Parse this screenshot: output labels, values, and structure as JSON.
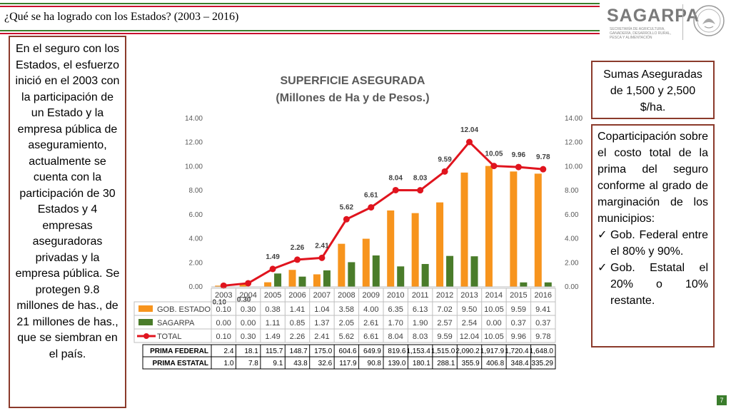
{
  "header": {
    "title": "¿Qué se ha logrado con los Estados? (2003 – 2016)"
  },
  "logo": {
    "name": "SAGARPA",
    "subtitle": "SECRETARÍA DE AGRICULTURA, GANADERÍA, DESARROLLO RURAL, PESCA Y ALIMENTACIÓN"
  },
  "left_text": "En el seguro con los Estados, el esfuerzo inició en el 2003 con la participación de un Estado y la empresa pública de aseguramiento, actualmente se cuenta con la participación de 30 Estados y 4 empresas aseguradoras privadas y la empresa pública. Se protegen 9.8 millones de has., de 21 millones de has., que se siembran en el país.",
  "sumas_text": "Sumas Aseguradas de 1,500 y 2,500 $/ha.",
  "copart": {
    "intro": "Coparticipación sobre el costo total de la prima del seguro conforme al grado de marginación de los municipios:",
    "items": [
      "Gob. Federal entre el 80% y 90%.",
      "Gob. Estatal el 20% o 10% restante."
    ]
  },
  "page_number": "7",
  "colors": {
    "gobestado": "#f7941d",
    "sagarpa": "#4a7c2a",
    "total": "#e0141e",
    "border": "#8b3a2b",
    "green_line": "#3a7d2c",
    "red_line": "#c8102e"
  },
  "chart_data": {
    "type": "bar",
    "title": "SUPERFICIE ASEGURADA",
    "subtitle": "(Millones de Ha y de Pesos.)",
    "ylim": [
      0,
      14
    ],
    "yticks": [
      "0.00",
      "2.00",
      "4.00",
      "6.00",
      "8.00",
      "10.00",
      "12.00",
      "14.00"
    ],
    "grid": false,
    "categories": [
      "2003",
      "2004",
      "2005",
      "2006",
      "2007",
      "2008",
      "2009",
      "2010",
      "2011",
      "2012",
      "2013",
      "2014",
      "2015",
      "2016"
    ],
    "series": [
      {
        "name": "GOB. ESTADO",
        "kind": "bar",
        "values": [
          0.1,
          0.3,
          0.38,
          1.41,
          1.04,
          3.58,
          4.0,
          6.35,
          6.13,
          7.02,
          9.5,
          10.05,
          9.59,
          9.41
        ],
        "labels": [
          "0.10",
          "0.30",
          "0.38",
          "1.41",
          "1.04",
          "3.58",
          "4.00",
          "6.35",
          "6.13",
          "7.02",
          "9.50",
          "10.05",
          "9.59",
          "9.41"
        ]
      },
      {
        "name": "SAGARPA",
        "kind": "bar",
        "values": [
          0.0,
          0.0,
          1.11,
          0.85,
          1.37,
          2.05,
          2.61,
          1.7,
          1.9,
          2.57,
          2.54,
          0.0,
          0.37,
          0.37
        ],
        "labels": [
          "0.00",
          "0.00",
          "1.11",
          "0.85",
          "1.37",
          "2.05",
          "2.61",
          "1.70",
          "1.90",
          "2.57",
          "2.54",
          "0.00",
          "0.37",
          "0.37"
        ]
      },
      {
        "name": "TOTAL",
        "kind": "line",
        "values": [
          0.1,
          0.3,
          1.49,
          2.26,
          2.41,
          5.62,
          6.61,
          8.04,
          8.03,
          9.59,
          12.04,
          10.05,
          9.96,
          9.78
        ],
        "labels": [
          "0.10",
          "0.30",
          "1.49",
          "2.26",
          "2.41",
          "5.62",
          "6.61",
          "8.04",
          "8.03",
          "9.59",
          "12.04",
          "10.05",
          "9.96",
          "9.78"
        ]
      }
    ],
    "extra_rows": [
      {
        "name": "PRIMA FEDERAL",
        "values": [
          "2.4",
          "18.1",
          "115.7",
          "148.7",
          "175.0",
          "604.6",
          "649.9",
          "819.6",
          "1,153.4",
          "1,515.0",
          "2,090.2",
          "1,917.9",
          "1,720.4",
          "1,648.0"
        ]
      },
      {
        "name": "PRIMA ESTATAL",
        "values": [
          "1.0",
          "7.8",
          "9.1",
          "43.8",
          "32.6",
          "117.9",
          "90.8",
          "139.0",
          "180.1",
          "288.1",
          "355.9",
          "406.8",
          "348.4",
          "335.29"
        ]
      }
    ]
  }
}
